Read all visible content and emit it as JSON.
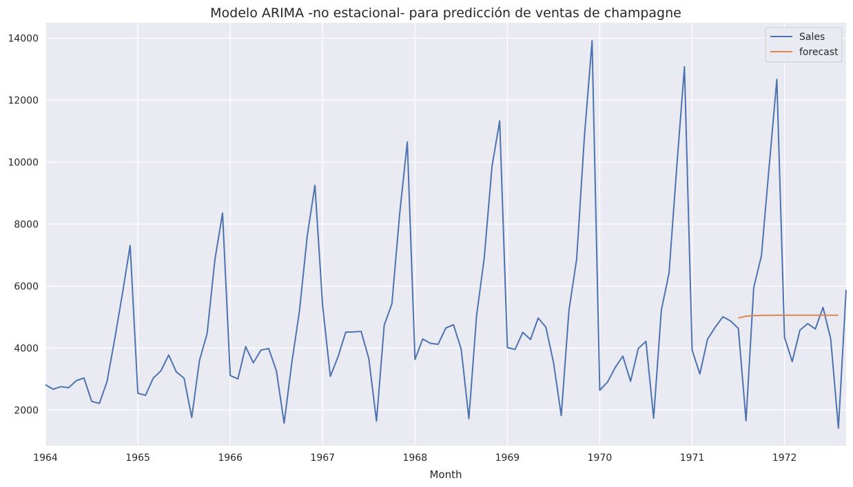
{
  "chart_data": {
    "type": "line",
    "title": "Modelo ARIMA -no estacional- para predicción de ventas de champagne",
    "xlabel": "Month",
    "ylabel": "",
    "x_start": "1964-01",
    "xlim": [
      "1964-01",
      "1972-09"
    ],
    "ylim": [
      850,
      14500
    ],
    "x_ticks": [
      "1964",
      "1965",
      "1966",
      "1967",
      "1968",
      "1969",
      "1970",
      "1971",
      "1972"
    ],
    "y_ticks": [
      "2000",
      "4000",
      "6000",
      "8000",
      "10000",
      "12000",
      "14000"
    ],
    "grid": true,
    "legend": "top-right",
    "series": [
      {
        "name": "Sales",
        "color": "#4c72b0",
        "start": "1964-01",
        "values": [
          2815,
          2672,
          2755,
          2721,
          2946,
          3036,
          2282,
          2212,
          2922,
          4301,
          5764,
          7312,
          2541,
          2475,
          3031,
          3266,
          3776,
          3230,
          3028,
          1759,
          3595,
          4474,
          6838,
          8357,
          3113,
          3006,
          4047,
          3523,
          3937,
          3986,
          3260,
          1573,
          3528,
          5211,
          7614,
          9254,
          5375,
          3088,
          3718,
          4514,
          4520,
          4539,
          3663,
          1643,
          4739,
          5428,
          8314,
          10651,
          3633,
          4292,
          4154,
          4121,
          4647,
          4753,
          3965,
          1723,
          5048,
          6922,
          9858,
          11331,
          4016,
          3957,
          4510,
          4276,
          4968,
          4677,
          3523,
          1821,
          5222,
          6872,
          10803,
          13916,
          2639,
          2899,
          3370,
          3740,
          2927,
          3986,
          4217,
          1738,
          5221,
          6424,
          9842,
          13076,
          3934,
          3162,
          4286,
          4676,
          5010,
          4874,
          4633,
          1659,
          5951,
          6981,
          9851,
          12670,
          4348,
          3564,
          4577,
          4788,
          4618,
          5312,
          4298,
          1413,
          5877
        ]
      },
      {
        "name": "forecast",
        "color": "#dd8452",
        "start": "1971-07",
        "values": [
          4970,
          5030,
          5050,
          5055,
          5058,
          5060,
          5060,
          5060,
          5060,
          5060,
          5060,
          5060,
          5060,
          5060
        ]
      }
    ]
  }
}
